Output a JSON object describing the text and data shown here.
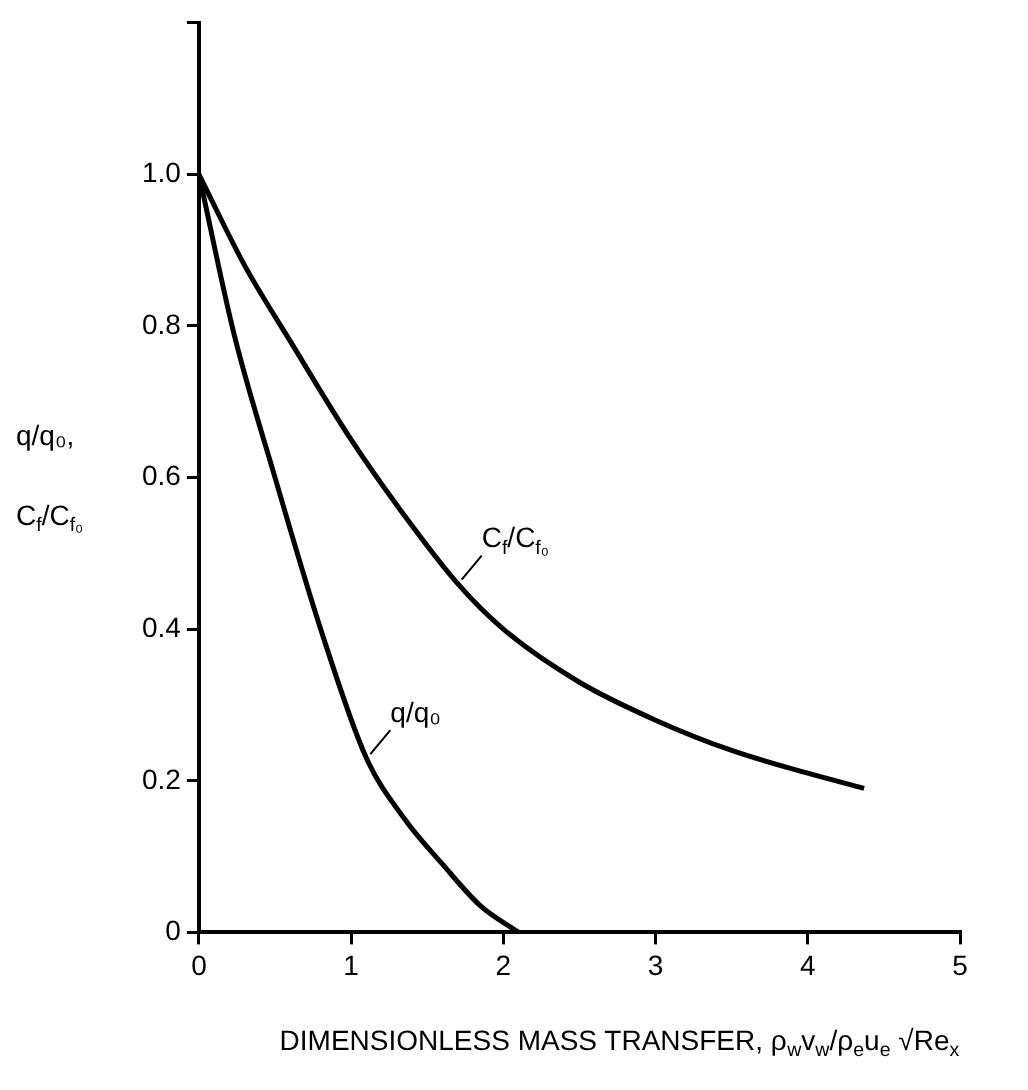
{
  "chart_data": {
    "type": "line",
    "xlabel": "DIMENSIONLESS MASS TRANSFER, ρ$_{w}$v$_{w}$/ρ$_{e}$u$_{e}$ √Re$_{x}$",
    "ylabel": "q/q₀, C$_{f}$/C$_{f₀}$",
    "xlim": [
      0,
      5
    ],
    "xticks": [
      0,
      1,
      2,
      3,
      4,
      5
    ],
    "ylim": [
      0,
      1.2
    ],
    "yticks": [
      0,
      0.2,
      0.4,
      0.6,
      0.8,
      {
        "value": 1.0,
        "label": "1.0"
      },
      {
        "value": 1.2,
        "label": null
      }
    ],
    "grid": false,
    "legend": false,
    "marker": "none",
    "line_style": "solid",
    "series": [
      {
        "name": "C$_{f}$/C$_{f₀}$",
        "color": "#000000",
        "x": [
          0,
          0.3,
          0.6,
          1.0,
          1.35,
          1.7,
          2,
          2.5,
          3,
          3.5,
          4,
          4.37
        ],
        "values": [
          1.0,
          0.88,
          0.78,
          0.65,
          0.55,
          0.46,
          0.4,
          0.33,
          0.28,
          0.24,
          0.21,
          0.19
        ]
      },
      {
        "name": "q/q₀",
        "color": "#000000",
        "x": [
          0,
          0.23,
          0.5,
          0.8,
          1.1,
          1.35,
          1.6,
          1.85,
          2.1
        ],
        "values": [
          1.0,
          0.79,
          0.6,
          0.4,
          0.23,
          0.15,
          0.09,
          0.035,
          0
        ]
      }
    ]
  }
}
